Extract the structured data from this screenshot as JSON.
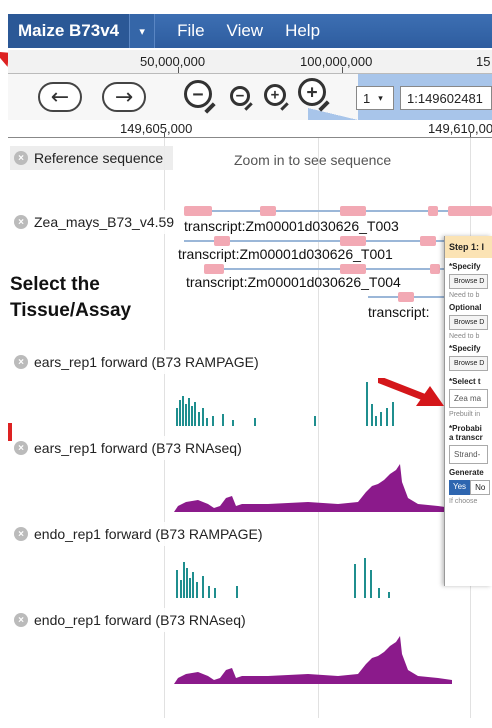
{
  "menubar": {
    "brand": "Maize B73v4",
    "caret": "▾",
    "menus": [
      "File",
      "View",
      "Help"
    ]
  },
  "overview": {
    "labels": [
      "50,000,000",
      "100,000,000",
      "15"
    ]
  },
  "nav": {
    "back_icon": "←",
    "forward_icon": "→",
    "zoom_out_big": "−",
    "zoom_out_small": "−",
    "zoom_in_small": "+",
    "zoom_in_big": "+",
    "chrom_select": "1",
    "chrom_caret": "▾",
    "location": "1:149602481"
  },
  "ruler": {
    "labels": [
      "149,605,000",
      "149,610,00"
    ]
  },
  "tracks": {
    "reference": {
      "label": "Reference sequence",
      "message": "Zoom in to see sequence"
    },
    "genes": {
      "label": "Zea_mays_B73_v4.59",
      "transcripts": [
        "transcript:Zm00001d030626_T003",
        "transcript:Zm00001d030626_T001",
        "transcript:Zm00001d030626_T004",
        "transcript:"
      ]
    },
    "signal_tracks": [
      {
        "label": "ears_rep1 forward (B73 RAMPAGE)",
        "color": "#1f8e8e",
        "kind": "rampage"
      },
      {
        "label": "ears_rep1 forward (B73 RNAseq)",
        "color": "#8b1a8b",
        "kind": "rnaseq"
      },
      {
        "label": "endo_rep1 forward (B73 RAMPAGE)",
        "color": "#1f8e8e",
        "kind": "rampage"
      },
      {
        "label": "endo_rep1 forward (B73 RNAseq)",
        "color": "#8b1a8b",
        "kind": "rnaseq"
      }
    ]
  },
  "annotation": {
    "line1": "Select the",
    "line2": "Tissue/Assay"
  },
  "panel": {
    "header": "Step 1: I",
    "specify1": "*Specify",
    "browse1": "Browse D",
    "note1": "Need to b",
    "optional": "Optional",
    "browse2": "Browse D",
    "note2": "Need to b",
    "specify2": "*Specify",
    "browse3": "Browse D",
    "select": "*Select t",
    "field": "Zea ma",
    "prebuilt": "Prebuilt in",
    "probab1": "*Probabi",
    "probab2": "a transcr",
    "strand": "Strand-",
    "generate": "Generate",
    "yes": "Yes",
    "no": "No",
    "note3": "If choose"
  }
}
